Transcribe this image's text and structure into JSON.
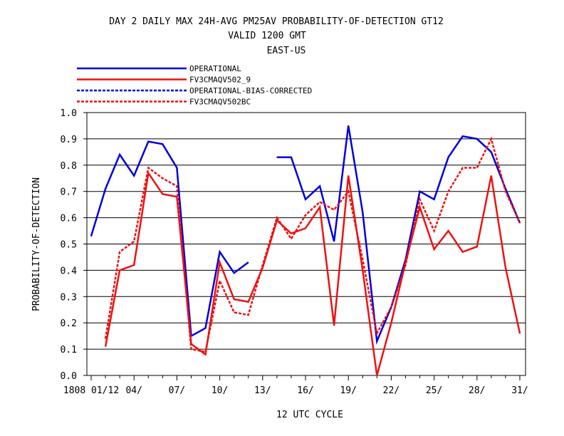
{
  "chart_data": {
    "type": "line",
    "title_lines": [
      "DAY 2 DAILY MAX   24H-AVG PM25AV PROBABILITY-OF-DETECTION GT12",
      "VALID 1200 GMT",
      "EAST-US"
    ],
    "xlabel": "12 UTC CYCLE",
    "ylabel": "PROBABILITY-OF-DETECTION",
    "ylim": [
      0,
      1
    ],
    "yticks": [
      "0.0",
      "0.1",
      "0.2",
      "0.3",
      "0.4",
      "0.5",
      "0.6",
      "0.7",
      "0.8",
      "0.9",
      "1.0"
    ],
    "x_ticks": [
      {
        "day": 1,
        "label": "1808 01/12"
      },
      {
        "day": 4,
        "label": "04/"
      },
      {
        "day": 7,
        "label": "07/"
      },
      {
        "day": 10,
        "label": "10/"
      },
      {
        "day": 13,
        "label": "13/"
      },
      {
        "day": 16,
        "label": "16/"
      },
      {
        "day": 19,
        "label": "19/"
      },
      {
        "day": 22,
        "label": "22/"
      },
      {
        "day": 25,
        "label": "25/"
      },
      {
        "day": 28,
        "label": "28/"
      },
      {
        "day": 31,
        "label": "31/"
      }
    ],
    "xlim": [
      0.7,
      31.4
    ],
    "grid": true,
    "legend_position": "top-left",
    "series": [
      {
        "name": "OPERATIONAL",
        "color": "#0000dd",
        "dash": "solid",
        "points": [
          [
            1,
            0.53
          ],
          [
            2,
            0.71
          ],
          [
            3,
            0.84
          ],
          [
            4,
            0.76
          ],
          [
            5,
            0.89
          ],
          [
            6,
            0.88
          ],
          [
            7,
            0.79
          ],
          [
            8,
            0.15
          ],
          [
            9,
            0.18
          ],
          [
            10,
            0.47
          ],
          [
            11,
            0.39
          ],
          [
            12,
            0.43
          ],
          null,
          [
            14,
            0.83
          ],
          [
            15,
            0.83
          ],
          [
            16,
            0.67
          ],
          [
            17,
            0.72
          ],
          [
            18,
            0.51
          ],
          [
            19,
            0.95
          ],
          [
            20,
            0.62
          ],
          [
            21,
            0.13
          ],
          [
            22,
            0.26
          ],
          [
            23,
            0.44
          ],
          [
            24,
            0.7
          ],
          [
            25,
            0.67
          ],
          [
            26,
            0.83
          ],
          [
            27,
            0.91
          ],
          [
            28,
            0.9
          ],
          [
            29,
            0.85
          ],
          [
            30,
            0.71
          ],
          [
            31,
            0.58
          ]
        ]
      },
      {
        "name": "FV3CMAQV502_9",
        "color": "#ee1111",
        "dash": "solid",
        "points": [
          [
            2,
            0.11
          ],
          [
            3,
            0.4
          ],
          [
            4,
            0.42
          ],
          [
            5,
            0.77
          ],
          [
            6,
            0.69
          ],
          [
            7,
            0.68
          ],
          [
            8,
            0.12
          ],
          [
            9,
            0.08
          ],
          [
            10,
            0.43
          ],
          [
            11,
            0.29
          ],
          [
            12,
            0.28
          ],
          [
            13,
            0.41
          ],
          [
            14,
            0.59
          ],
          [
            15,
            0.54
          ],
          [
            16,
            0.56
          ],
          [
            17,
            0.64
          ],
          [
            18,
            0.19
          ],
          [
            19,
            0.76
          ],
          [
            20,
            0.4
          ],
          [
            21,
            0.0
          ],
          [
            22,
            0.2
          ],
          [
            23,
            0.43
          ],
          [
            24,
            0.64
          ],
          [
            25,
            0.48
          ],
          [
            26,
            0.55
          ],
          [
            27,
            0.47
          ],
          [
            28,
            0.49
          ],
          [
            29,
            0.76
          ],
          [
            30,
            0.41
          ],
          [
            31,
            0.16
          ]
        ]
      },
      {
        "name": "OPERATIONAL-BIAS-CORRECTED",
        "color": "#0000dd",
        "dash": "dashed",
        "points": []
      },
      {
        "name": "FV3CMAQV502BC",
        "color": "#ee1111",
        "dash": "dashed",
        "points": [
          [
            2,
            0.14
          ],
          [
            3,
            0.47
          ],
          [
            4,
            0.51
          ],
          [
            5,
            0.79
          ],
          [
            6,
            0.75
          ],
          [
            7,
            0.72
          ],
          [
            8,
            0.1
          ],
          [
            9,
            0.09
          ],
          [
            10,
            0.36
          ],
          [
            11,
            0.24
          ],
          [
            12,
            0.23
          ],
          [
            13,
            0.42
          ],
          [
            14,
            0.6
          ],
          [
            15,
            0.52
          ],
          [
            16,
            0.61
          ],
          [
            17,
            0.66
          ],
          [
            18,
            0.63
          ],
          [
            19,
            0.7
          ],
          [
            20,
            0.44
          ],
          [
            21,
            0.16
          ],
          [
            22,
            0.26
          ],
          [
            23,
            0.42
          ],
          [
            24,
            0.67
          ],
          [
            25,
            0.55
          ],
          [
            26,
            0.7
          ],
          [
            27,
            0.79
          ],
          [
            28,
            0.79
          ],
          [
            29,
            0.9
          ],
          [
            30,
            0.7
          ],
          [
            31,
            0.58
          ]
        ]
      }
    ]
  }
}
